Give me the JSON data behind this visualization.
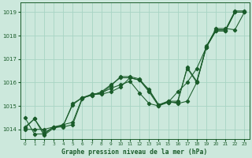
{
  "title": "Graphe pression niveau de la mer (hPa)",
  "bg_color": "#cce8dc",
  "grid_color": "#a8d4c4",
  "line_color": "#1a5c2a",
  "xlim": [
    -0.5,
    23.5
  ],
  "ylim": [
    1013.6,
    1019.4
  ],
  "yticks": [
    1014,
    1015,
    1016,
    1017,
    1018,
    1019
  ],
  "xticks": [
    0,
    1,
    2,
    3,
    4,
    5,
    6,
    7,
    8,
    9,
    10,
    11,
    12,
    13,
    14,
    15,
    16,
    17,
    18,
    19,
    20,
    21,
    22,
    23
  ],
  "series": [
    [
      1014.05,
      1014.45,
      1013.75,
      1014.05,
      1014.15,
      1015.05,
      1015.35,
      1015.45,
      1015.55,
      1015.85,
      1016.25,
      1016.25,
      1016.15,
      1015.65,
      1015.05,
      1015.15,
      1015.15,
      1016.65,
      1016.05,
      1017.55,
      1018.25,
      1018.25,
      1019.05,
      1019.05
    ],
    [
      1014.5,
      1013.8,
      1013.8,
      1014.1,
      1014.1,
      1014.2,
      1015.3,
      1015.5,
      1015.5,
      1015.6,
      1015.8,
      1016.2,
      1016.1,
      1015.6,
      1015.0,
      1015.2,
      1015.1,
      1015.2,
      1016.0,
      1017.5,
      1018.2,
      1018.2,
      1019.0,
      1019.0
    ],
    [
      1014.1,
      1014.45,
      1013.85,
      1014.1,
      1014.15,
      1015.1,
      1015.35,
      1015.45,
      1015.6,
      1015.9,
      1016.2,
      1016.2,
      1016.1,
      1015.7,
      1015.05,
      1015.2,
      1015.2,
      1016.6,
      1016.0,
      1017.5,
      1018.3,
      1018.3,
      1018.25,
      1019.0
    ],
    [
      1014.0,
      1014.0,
      1014.0,
      1014.1,
      1014.2,
      1014.3,
      1015.35,
      1015.5,
      1015.55,
      1015.75,
      1015.9,
      1016.05,
      1015.55,
      1015.1,
      1015.0,
      1015.15,
      1015.6,
      1016.0,
      1016.6,
      1017.5,
      1018.2,
      1018.2,
      1019.0,
      1019.0
    ]
  ]
}
